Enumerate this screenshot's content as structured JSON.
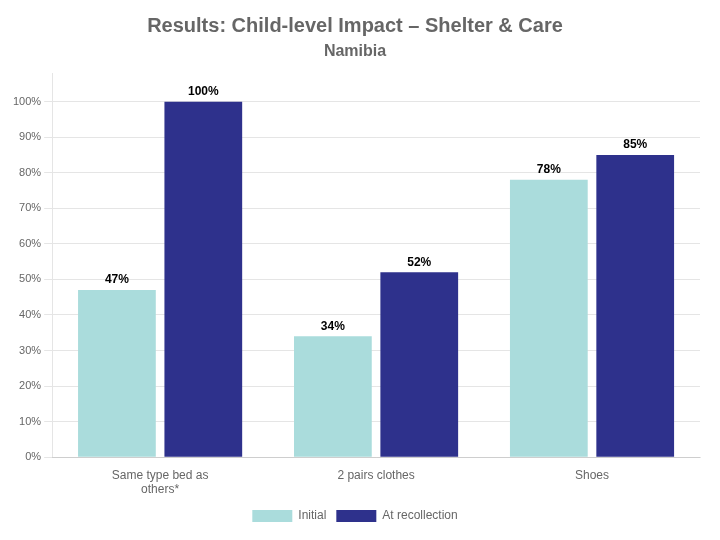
{
  "chart_data": {
    "type": "bar",
    "title": "Results: Child-level Impact – Shelter & Care",
    "subtitle": "Namibia",
    "categories": [
      "Same type bed as\nothers*",
      "2 pairs clothes",
      "Shoes"
    ],
    "series": [
      {
        "name": "Initial",
        "color": "#AADCDC",
        "values": [
          0.47,
          0.34,
          0.78
        ],
        "value_labels": [
          "47%",
          "34%",
          "78%"
        ]
      },
      {
        "name": "At recollection",
        "color": "#2E318C",
        "values": [
          1.0,
          0.52,
          0.85
        ],
        "value_labels": [
          "100%",
          "52%",
          "85%"
        ]
      }
    ],
    "ylim": [
      0,
      1.08
    ],
    "yticks": [
      {
        "value": 0.0,
        "label": "0%"
      },
      {
        "value": 0.1,
        "label": "10%"
      },
      {
        "value": 0.2,
        "label": "20%"
      },
      {
        "value": 0.3,
        "label": "30%"
      },
      {
        "value": 0.4,
        "label": "40%"
      },
      {
        "value": 0.5,
        "label": "50%"
      },
      {
        "value": 0.6,
        "label": "60%"
      },
      {
        "value": 0.7,
        "label": "70%"
      },
      {
        "value": 0.8,
        "label": "80%"
      },
      {
        "value": 0.9,
        "label": "90%"
      },
      {
        "value": 1.0,
        "label": "100%"
      }
    ],
    "grid": true,
    "legend": "bottom",
    "data_labels": true
  }
}
